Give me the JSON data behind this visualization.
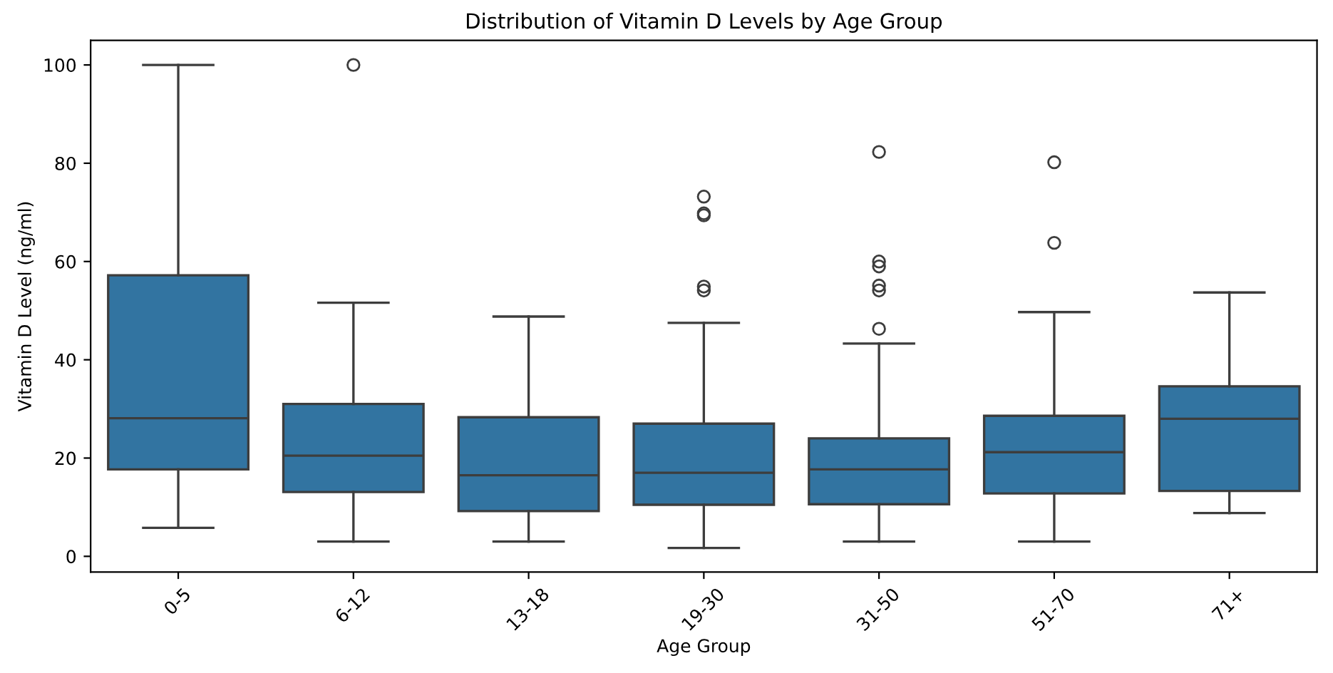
{
  "chart_data": {
    "type": "box",
    "title": "Distribution of Vitamin D Levels by Age Group",
    "xlabel": "Age Group",
    "ylabel": "Vitamin D Level (ng/ml)",
    "categories": [
      "0-5",
      "6-12",
      "13-18",
      "19-30",
      "31-50",
      "51-70",
      "71+"
    ],
    "color": "#3274a1",
    "boxes": [
      {
        "low": 5.8,
        "q1": 17.7,
        "median": 28.1,
        "q3": 57.2,
        "high": 100
      },
      {
        "low": 3.0,
        "q1": 13.1,
        "median": 20.5,
        "q3": 31.0,
        "high": 51.6,
        "outliers": [
          100
        ]
      },
      {
        "low": 3.0,
        "q1": 9.2,
        "median": 16.5,
        "q3": 28.3,
        "high": 48.8
      },
      {
        "low": 1.7,
        "q1": 10.5,
        "median": 17.0,
        "q3": 27.0,
        "high": 47.5,
        "outliers": [
          73.2,
          69.8,
          69.4,
          54.9,
          54.1
        ]
      },
      {
        "low": 3.0,
        "q1": 10.6,
        "median": 17.7,
        "q3": 24.0,
        "high": 43.3,
        "outliers": [
          82.3,
          60.0,
          59.0,
          55.1,
          54.1,
          46.3
        ]
      },
      {
        "low": 3.0,
        "q1": 12.8,
        "median": 21.2,
        "q3": 28.6,
        "high": 49.7,
        "outliers": [
          80.2,
          63.8
        ]
      },
      {
        "low": 8.8,
        "q1": 13.3,
        "median": 28.0,
        "q3": 34.6,
        "high": 53.7
      }
    ],
    "ylim": [
      -3.2,
      105
    ],
    "yticks": [
      0,
      20,
      40,
      60,
      80,
      100
    ],
    "grid": false
  }
}
